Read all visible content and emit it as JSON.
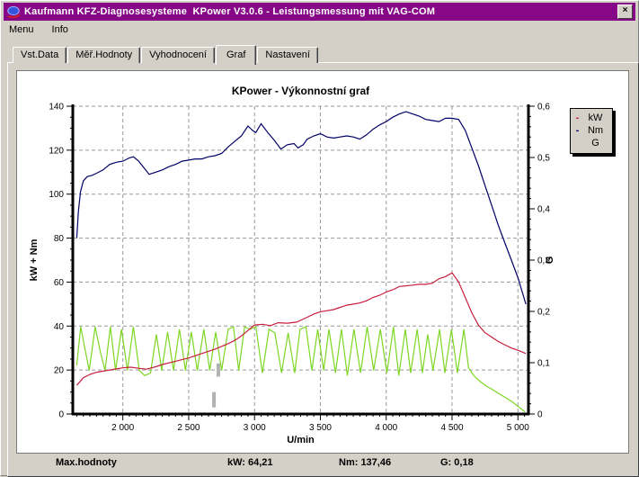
{
  "window": {
    "title": "Kaufmann KFZ-Diagnosesysteme  KPower V3.0.6 - Leistungsmessung mit VAG-COM",
    "close_glyph": "×"
  },
  "menu": {
    "items": [
      "Menu",
      "Info"
    ]
  },
  "tabs": {
    "items": [
      "Vst.Data",
      "Měř.Hodnoty",
      "Vyhodnocení",
      "Graf",
      "Nastavení"
    ],
    "active": "Graf"
  },
  "legend": {
    "items": [
      {
        "label": "kW",
        "dash": "-",
        "color": "#C81E3C"
      },
      {
        "label": "Nm",
        "dash": "-",
        "color": "#000066"
      },
      {
        "label": "G",
        "dash": "",
        "color": "#7CD622"
      }
    ]
  },
  "status": {
    "label": "Max.hodnoty",
    "kw": "kW: 64,21",
    "nm": "Nm: 137,46",
    "g": "G: 0,18"
  },
  "chart_data": {
    "type": "line",
    "title": "KPower - Výkonnostní graf",
    "xlabel": "U/min",
    "ylabel_left": "kW + Nm",
    "ylabel_right": "G",
    "xlim": [
      1620,
      5080
    ],
    "ylim_left": [
      0,
      140
    ],
    "ylim_right": [
      0,
      0.6
    ],
    "x_ticks": [
      2000,
      2500,
      3000,
      3500,
      4000,
      4500,
      5000
    ],
    "x_tick_labels": [
      "2 000",
      "2 500",
      "3 000",
      "3 500",
      "4 000",
      "4 500",
      "5 000"
    ],
    "y_ticks_left": [
      0,
      20,
      40,
      60,
      80,
      100,
      120,
      140
    ],
    "y_ticks_right": [
      0,
      0.1,
      0.2,
      0.3,
      0.4,
      0.5,
      0.6
    ],
    "y_tick_labels_right": [
      "0",
      "0,1",
      "0,2",
      "0,3",
      "0,4",
      "0,5",
      "0,6"
    ],
    "grid": "dashed",
    "grid_color": "#999999",
    "legend_position": "outside-top-right",
    "marker_color": "#b2b2b2",
    "marker_bars": [
      {
        "rpm": 2725,
        "v1": 17,
        "v2": 23
      },
      {
        "rpm": 2692,
        "v1": 3,
        "v2": 10
      }
    ],
    "series": [
      {
        "name": "G",
        "axis": "right",
        "color": "#7CD622",
        "points": [
          [
            1650,
            0.095
          ],
          [
            1680,
            0.17
          ],
          [
            1710,
            0.13
          ],
          [
            1745,
            0.085
          ],
          [
            1790,
            0.17
          ],
          [
            1830,
            0.12
          ],
          [
            1865,
            0.085
          ],
          [
            1905,
            0.17
          ],
          [
            1945,
            0.085
          ],
          [
            1990,
            0.165
          ],
          [
            2035,
            0.085
          ],
          [
            2080,
            0.17
          ],
          [
            2125,
            0.085
          ],
          [
            2165,
            0.075
          ],
          [
            2210,
            0.08
          ],
          [
            2255,
            0.155
          ],
          [
            2295,
            0.085
          ],
          [
            2340,
            0.16
          ],
          [
            2385,
            0.085
          ],
          [
            2430,
            0.165
          ],
          [
            2475,
            0.085
          ],
          [
            2520,
            0.16
          ],
          [
            2565,
            0.085
          ],
          [
            2615,
            0.165
          ],
          [
            2660,
            0.085
          ],
          [
            2705,
            0.16
          ],
          [
            2750,
            0.085
          ],
          [
            2800,
            0.165
          ],
          [
            2840,
            0.17
          ],
          [
            2880,
            0.085
          ],
          [
            2925,
            0.17
          ],
          [
            2965,
            0.165
          ],
          [
            3010,
            0.17
          ],
          [
            3060,
            0.08
          ],
          [
            3110,
            0.165
          ],
          [
            3155,
            0.158
          ],
          [
            3205,
            0.08
          ],
          [
            3255,
            0.158
          ],
          [
            3305,
            0.08
          ],
          [
            3345,
            0.165
          ],
          [
            3390,
            0.17
          ],
          [
            3435,
            0.085
          ],
          [
            3480,
            0.165
          ],
          [
            3525,
            0.085
          ],
          [
            3565,
            0.165
          ],
          [
            3615,
            0.08
          ],
          [
            3660,
            0.165
          ],
          [
            3705,
            0.075
          ],
          [
            3755,
            0.165
          ],
          [
            3805,
            0.08
          ],
          [
            3855,
            0.17
          ],
          [
            3905,
            0.085
          ],
          [
            3955,
            0.165
          ],
          [
            4005,
            0.08
          ],
          [
            4055,
            0.17
          ],
          [
            4095,
            0.075
          ],
          [
            4145,
            0.165
          ],
          [
            4185,
            0.08
          ],
          [
            4235,
            0.165
          ],
          [
            4275,
            0.08
          ],
          [
            4315,
            0.155
          ],
          [
            4355,
            0.085
          ],
          [
            4405,
            0.165
          ],
          [
            4445,
            0.08
          ],
          [
            4495,
            0.165
          ],
          [
            4540,
            0.08
          ],
          [
            4590,
            0.165
          ],
          [
            4625,
            0.09
          ],
          [
            4665,
            0.075
          ],
          [
            4705,
            0.065
          ],
          [
            4755,
            0.055
          ],
          [
            4805,
            0.048
          ],
          [
            4855,
            0.04
          ],
          [
            4905,
            0.032
          ],
          [
            4955,
            0.024
          ],
          [
            5005,
            0.014
          ],
          [
            5055,
            0.004
          ]
        ]
      },
      {
        "name": "kW",
        "axis": "left",
        "color": "#C81E3C",
        "points": [
          [
            1650,
            13
          ],
          [
            1700,
            16.5
          ],
          [
            1750,
            18
          ],
          [
            1800,
            19
          ],
          [
            1850,
            19.5
          ],
          [
            1900,
            20
          ],
          [
            1950,
            20.5
          ],
          [
            2000,
            21
          ],
          [
            2060,
            21.3
          ],
          [
            2120,
            20.8
          ],
          [
            2180,
            20.4
          ],
          [
            2250,
            21.5
          ],
          [
            2300,
            22.5
          ],
          [
            2400,
            24
          ],
          [
            2500,
            25.5
          ],
          [
            2600,
            27.5
          ],
          [
            2700,
            29.5
          ],
          [
            2800,
            32
          ],
          [
            2850,
            33.5
          ],
          [
            2900,
            35.5
          ],
          [
            2950,
            38
          ],
          [
            3000,
            40.5
          ],
          [
            3060,
            40.8
          ],
          [
            3120,
            40.2
          ],
          [
            3180,
            41.5
          ],
          [
            3250,
            41.3
          ],
          [
            3320,
            41.8
          ],
          [
            3400,
            44
          ],
          [
            3450,
            45.5
          ],
          [
            3500,
            46.5
          ],
          [
            3550,
            47
          ],
          [
            3600,
            47.5
          ],
          [
            3650,
            48.5
          ],
          [
            3700,
            49.5
          ],
          [
            3750,
            50
          ],
          [
            3800,
            50.5
          ],
          [
            3850,
            51.5
          ],
          [
            3900,
            53
          ],
          [
            3950,
            54
          ],
          [
            4000,
            55.5
          ],
          [
            4050,
            56.5
          ],
          [
            4100,
            58
          ],
          [
            4150,
            58.3
          ],
          [
            4200,
            58.6
          ],
          [
            4250,
            59
          ],
          [
            4300,
            59
          ],
          [
            4350,
            59.5
          ],
          [
            4400,
            61.5
          ],
          [
            4450,
            62.5
          ],
          [
            4500,
            64.2
          ],
          [
            4550,
            60
          ],
          [
            4600,
            53
          ],
          [
            4650,
            46
          ],
          [
            4700,
            40.5
          ],
          [
            4750,
            37
          ],
          [
            4800,
            35
          ],
          [
            4850,
            33
          ],
          [
            4900,
            31.5
          ],
          [
            4950,
            30
          ],
          [
            5000,
            29
          ],
          [
            5060,
            27.5
          ]
        ]
      },
      {
        "name": "Nm",
        "axis": "left",
        "color": "#000066",
        "points": [
          [
            1650,
            80
          ],
          [
            1662,
            92
          ],
          [
            1678,
            101
          ],
          [
            1700,
            106
          ],
          [
            1730,
            108
          ],
          [
            1765,
            108.5
          ],
          [
            1800,
            109.5
          ],
          [
            1850,
            111
          ],
          [
            1900,
            113.5
          ],
          [
            1950,
            114.5
          ],
          [
            2000,
            115
          ],
          [
            2050,
            116.5
          ],
          [
            2080,
            117
          ],
          [
            2120,
            115
          ],
          [
            2160,
            112
          ],
          [
            2200,
            109
          ],
          [
            2250,
            110
          ],
          [
            2300,
            111
          ],
          [
            2350,
            112.5
          ],
          [
            2400,
            113.5
          ],
          [
            2450,
            115
          ],
          [
            2500,
            115.5
          ],
          [
            2550,
            116
          ],
          [
            2600,
            116
          ],
          [
            2650,
            117
          ],
          [
            2700,
            117.5
          ],
          [
            2750,
            118.5
          ],
          [
            2800,
            121.5
          ],
          [
            2850,
            124
          ],
          [
            2900,
            126.5
          ],
          [
            2950,
            131
          ],
          [
            2985,
            129
          ],
          [
            3010,
            128
          ],
          [
            3050,
            132
          ],
          [
            3100,
            128
          ],
          [
            3150,
            124.5
          ],
          [
            3200,
            120.5
          ],
          [
            3250,
            122.5
          ],
          [
            3300,
            123
          ],
          [
            3330,
            121
          ],
          [
            3370,
            122.5
          ],
          [
            3400,
            125
          ],
          [
            3450,
            126.5
          ],
          [
            3500,
            127.5
          ],
          [
            3550,
            126
          ],
          [
            3600,
            125.5
          ],
          [
            3650,
            126
          ],
          [
            3700,
            126.5
          ],
          [
            3750,
            126
          ],
          [
            3800,
            125
          ],
          [
            3850,
            127
          ],
          [
            3900,
            129.5
          ],
          [
            3950,
            131.5
          ],
          [
            4000,
            133
          ],
          [
            4050,
            135
          ],
          [
            4100,
            136.5
          ],
          [
            4150,
            137.5
          ],
          [
            4200,
            136.5
          ],
          [
            4250,
            135.5
          ],
          [
            4300,
            134
          ],
          [
            4350,
            133.5
          ],
          [
            4400,
            133
          ],
          [
            4450,
            134.5
          ],
          [
            4500,
            134.5
          ],
          [
            4550,
            134
          ],
          [
            4600,
            129
          ],
          [
            4650,
            121
          ],
          [
            4700,
            113
          ],
          [
            4750,
            104
          ],
          [
            4800,
            95
          ],
          [
            4850,
            86
          ],
          [
            4900,
            78
          ],
          [
            4950,
            70
          ],
          [
            5000,
            62
          ],
          [
            5060,
            50
          ]
        ]
      }
    ],
    "max_values_caption": "Max.hodnoty",
    "max_values": {
      "kW": "64,21",
      "Nm": "137,46",
      "G": "0,18"
    }
  }
}
